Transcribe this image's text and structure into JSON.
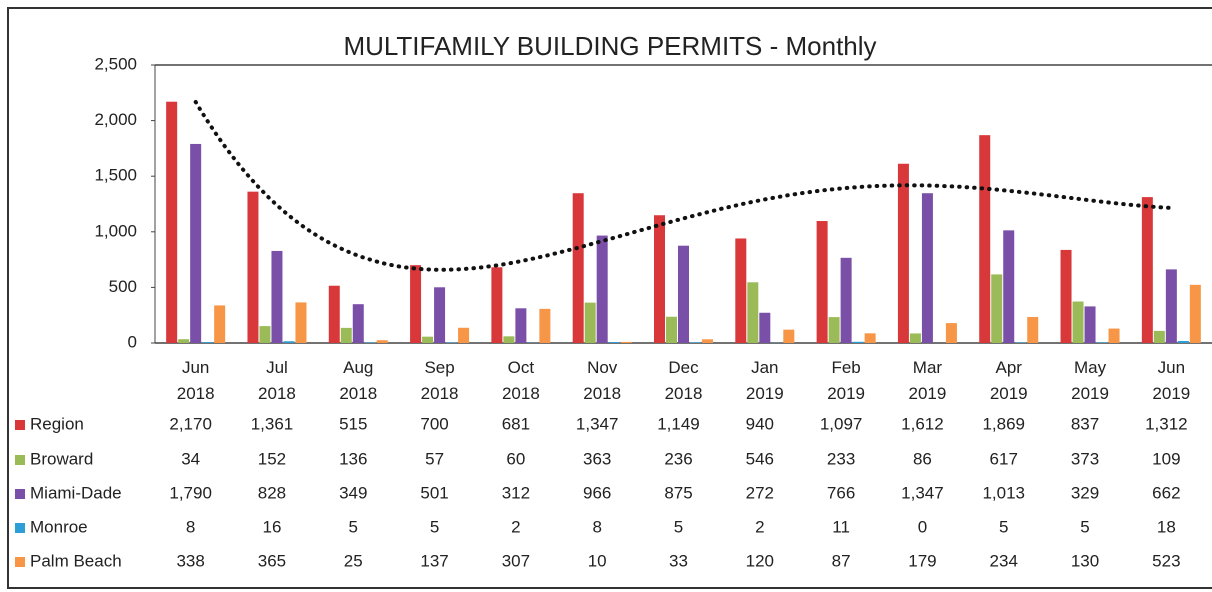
{
  "chart_data": {
    "type": "bar",
    "title": "MULTIFAMILY BUILDING PERMITS - Monthly",
    "categories": [
      "Jun 2018",
      "Jul 2018",
      "Aug 2018",
      "Sep 2018",
      "Oct 2018",
      "Nov 2018",
      "Dec 2018",
      "Jan 2019",
      "Feb 2019",
      "Mar 2019",
      "Apr 2019",
      "May 2019",
      "Jun 2019"
    ],
    "series": [
      {
        "name": "Region",
        "color": "#d9383a",
        "values": [
          2170,
          1361,
          515,
          700,
          681,
          1347,
          1149,
          940,
          1097,
          1612,
          1869,
          837,
          1312
        ],
        "value_labels": [
          "2,170",
          "1,361",
          "515",
          "700",
          "681",
          "1,347",
          "1,149",
          "940",
          "1,097",
          "1,612",
          "1,869",
          "837",
          "1,312"
        ]
      },
      {
        "name": "Broward",
        "color": "#9bbb59",
        "values": [
          34,
          152,
          136,
          57,
          60,
          363,
          236,
          546,
          233,
          86,
          617,
          373,
          109
        ]
      },
      {
        "name": "Miami-Dade",
        "color": "#7a4fa8",
        "values": [
          1790,
          828,
          349,
          501,
          312,
          966,
          875,
          272,
          766,
          1347,
          1013,
          329,
          662
        ],
        "value_labels": [
          "1,790",
          "828",
          "349",
          "501",
          "312",
          "966",
          "875",
          "272",
          "766",
          "1,347",
          "1,013",
          "329",
          "662"
        ]
      },
      {
        "name": "Monroe",
        "color": "#2e9fd6",
        "values": [
          8,
          16,
          5,
          5,
          2,
          8,
          5,
          2,
          11,
          0,
          5,
          5,
          18
        ]
      },
      {
        "name": "Palm Beach",
        "color": "#f79646",
        "values": [
          338,
          365,
          25,
          137,
          307,
          10,
          33,
          120,
          87,
          179,
          234,
          130,
          523
        ]
      }
    ],
    "ylim": [
      0,
      2500
    ],
    "yticks": [
      0,
      500,
      {
        "value": 1000,
        "label": "1,000"
      },
      {
        "value": 1500,
        "label": "1,500"
      },
      {
        "value": 2000,
        "label": "2,000"
      },
      {
        "value": 2500,
        "label": "2,500"
      }
    ],
    "trendline_order": 4
  }
}
